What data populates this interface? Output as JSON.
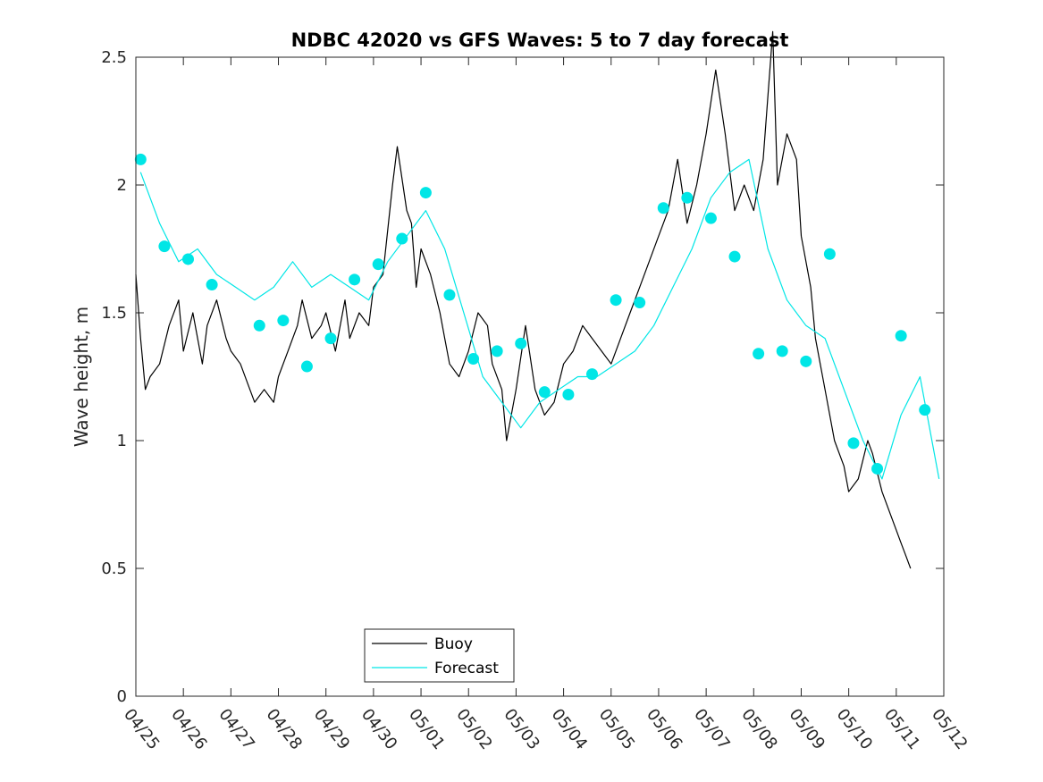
{
  "chart_data": {
    "type": "line",
    "title": "NDBC 42020 vs GFS Waves: 5 to 7 day forecast",
    "xlabel": "",
    "ylabel": "Wave height, m",
    "xlim": [
      0,
      17
    ],
    "ylim": [
      0,
      2.5
    ],
    "x_tick_labels": [
      "04/25",
      "04/26",
      "04/27",
      "04/28",
      "04/29",
      "04/30",
      "05/01",
      "05/02",
      "05/03",
      "05/04",
      "05/05",
      "05/06",
      "05/07",
      "05/08",
      "05/09",
      "05/10",
      "05/11",
      "05/12"
    ],
    "y_ticks": [
      0,
      0.5,
      1,
      1.5,
      2,
      2.5
    ],
    "y_tick_labels": [
      "0",
      "0.5",
      "1",
      "1.5",
      "2",
      "2.5"
    ],
    "grid": false,
    "legend_position": "bottom-center",
    "colors": {
      "buoy": "#000000",
      "forecast": "#00e6e6"
    },
    "series": [
      {
        "name": "Buoy",
        "style": "line",
        "x": [
          0,
          0.1,
          0.2,
          0.3,
          0.5,
          0.7,
          0.9,
          1.0,
          1.2,
          1.4,
          1.5,
          1.7,
          1.9,
          2.0,
          2.2,
          2.4,
          2.5,
          2.7,
          2.9,
          3.0,
          3.2,
          3.4,
          3.5,
          3.7,
          3.9,
          4.0,
          4.2,
          4.4,
          4.5,
          4.7,
          4.9,
          5.0,
          5.2,
          5.4,
          5.5,
          5.7,
          5.8,
          5.9,
          6.0,
          6.1,
          6.2,
          6.4,
          6.5,
          6.6,
          6.8,
          7.0,
          7.2,
          7.4,
          7.5,
          7.7,
          7.8,
          8.0,
          8.2,
          8.4,
          8.6,
          8.8,
          9.0,
          9.2,
          9.4,
          9.6,
          9.8,
          10.0,
          10.2,
          10.4,
          10.6,
          10.8,
          11.0,
          11.2,
          11.4,
          11.6,
          11.8,
          12.0,
          12.2,
          12.4,
          12.6,
          12.8,
          13.0,
          13.2,
          13.4,
          13.5,
          13.7,
          13.9,
          14.0,
          14.2,
          14.3,
          14.5,
          14.7,
          14.9,
          15.0,
          15.2,
          15.4,
          15.5,
          15.7,
          15.9,
          16.0,
          16.1,
          16.2,
          16.3
        ],
        "y": [
          1.65,
          1.4,
          1.2,
          1.25,
          1.3,
          1.45,
          1.55,
          1.35,
          1.5,
          1.3,
          1.45,
          1.55,
          1.4,
          1.35,
          1.3,
          1.2,
          1.15,
          1.2,
          1.15,
          1.25,
          1.35,
          1.45,
          1.55,
          1.4,
          1.45,
          1.5,
          1.35,
          1.55,
          1.4,
          1.5,
          1.45,
          1.6,
          1.65,
          2.0,
          2.15,
          1.9,
          1.85,
          1.6,
          1.75,
          1.7,
          1.65,
          1.5,
          1.4,
          1.3,
          1.25,
          1.35,
          1.5,
          1.45,
          1.3,
          1.2,
          1.0,
          1.2,
          1.45,
          1.2,
          1.1,
          1.15,
          1.3,
          1.35,
          1.45,
          1.4,
          1.35,
          1.3,
          1.4,
          1.5,
          1.6,
          1.7,
          1.8,
          1.9,
          2.1,
          1.85,
          2.0,
          2.2,
          2.45,
          2.2,
          1.9,
          2.0,
          1.9,
          2.1,
          2.6,
          2.0,
          2.2,
          2.1,
          1.8,
          1.6,
          1.4,
          1.2,
          1.0,
          0.9,
          0.8,
          0.85,
          1.0,
          0.95,
          0.8,
          0.7,
          0.65,
          0.6,
          0.55,
          0.5
        ]
      },
      {
        "name": "Forecast",
        "style": "line",
        "x": [
          0.1,
          0.5,
          0.9,
          1.3,
          1.7,
          2.1,
          2.5,
          2.9,
          3.3,
          3.7,
          4.1,
          4.5,
          4.9,
          5.3,
          5.7,
          6.1,
          6.5,
          6.9,
          7.3,
          7.7,
          8.1,
          8.5,
          8.9,
          9.3,
          9.7,
          10.1,
          10.5,
          10.9,
          11.3,
          11.7,
          12.1,
          12.5,
          12.9,
          13.3,
          13.7,
          14.1,
          14.5,
          14.9,
          15.3,
          15.7,
          16.1,
          16.5,
          16.9
        ],
        "y": [
          2.05,
          1.85,
          1.7,
          1.75,
          1.65,
          1.6,
          1.55,
          1.6,
          1.7,
          1.6,
          1.65,
          1.6,
          1.55,
          1.7,
          1.8,
          1.9,
          1.75,
          1.5,
          1.25,
          1.15,
          1.05,
          1.15,
          1.2,
          1.25,
          1.25,
          1.3,
          1.35,
          1.45,
          1.6,
          1.75,
          1.95,
          2.05,
          2.1,
          1.75,
          1.55,
          1.45,
          1.4,
          1.2,
          1.0,
          0.85,
          1.1,
          1.25,
          0.85
        ]
      },
      {
        "name": "Forecast",
        "style": "markers",
        "x": [
          0.1,
          0.6,
          1.1,
          1.6,
          2.6,
          3.1,
          3.6,
          4.1,
          4.6,
          5.1,
          5.6,
          6.1,
          6.6,
          7.1,
          7.6,
          8.1,
          8.6,
          9.1,
          9.6,
          10.1,
          10.6,
          11.1,
          11.6,
          12.1,
          12.6,
          13.1,
          13.6,
          14.1,
          14.6,
          15.1,
          15.6,
          16.1,
          16.6
        ],
        "y": [
          2.1,
          1.76,
          1.71,
          1.61,
          1.45,
          1.47,
          1.29,
          1.4,
          1.63,
          1.69,
          1.79,
          1.97,
          1.57,
          1.32,
          1.35,
          1.38,
          1.19,
          1.18,
          1.26,
          1.55,
          1.54,
          1.91,
          1.95,
          1.87,
          1.72,
          1.34,
          1.35,
          1.31,
          1.73,
          0.99,
          0.89,
          1.41,
          1.12
        ]
      }
    ],
    "legend": [
      {
        "label": "Buoy",
        "color": "#000000"
      },
      {
        "label": "Forecast",
        "color": "#00e6e6"
      }
    ]
  }
}
